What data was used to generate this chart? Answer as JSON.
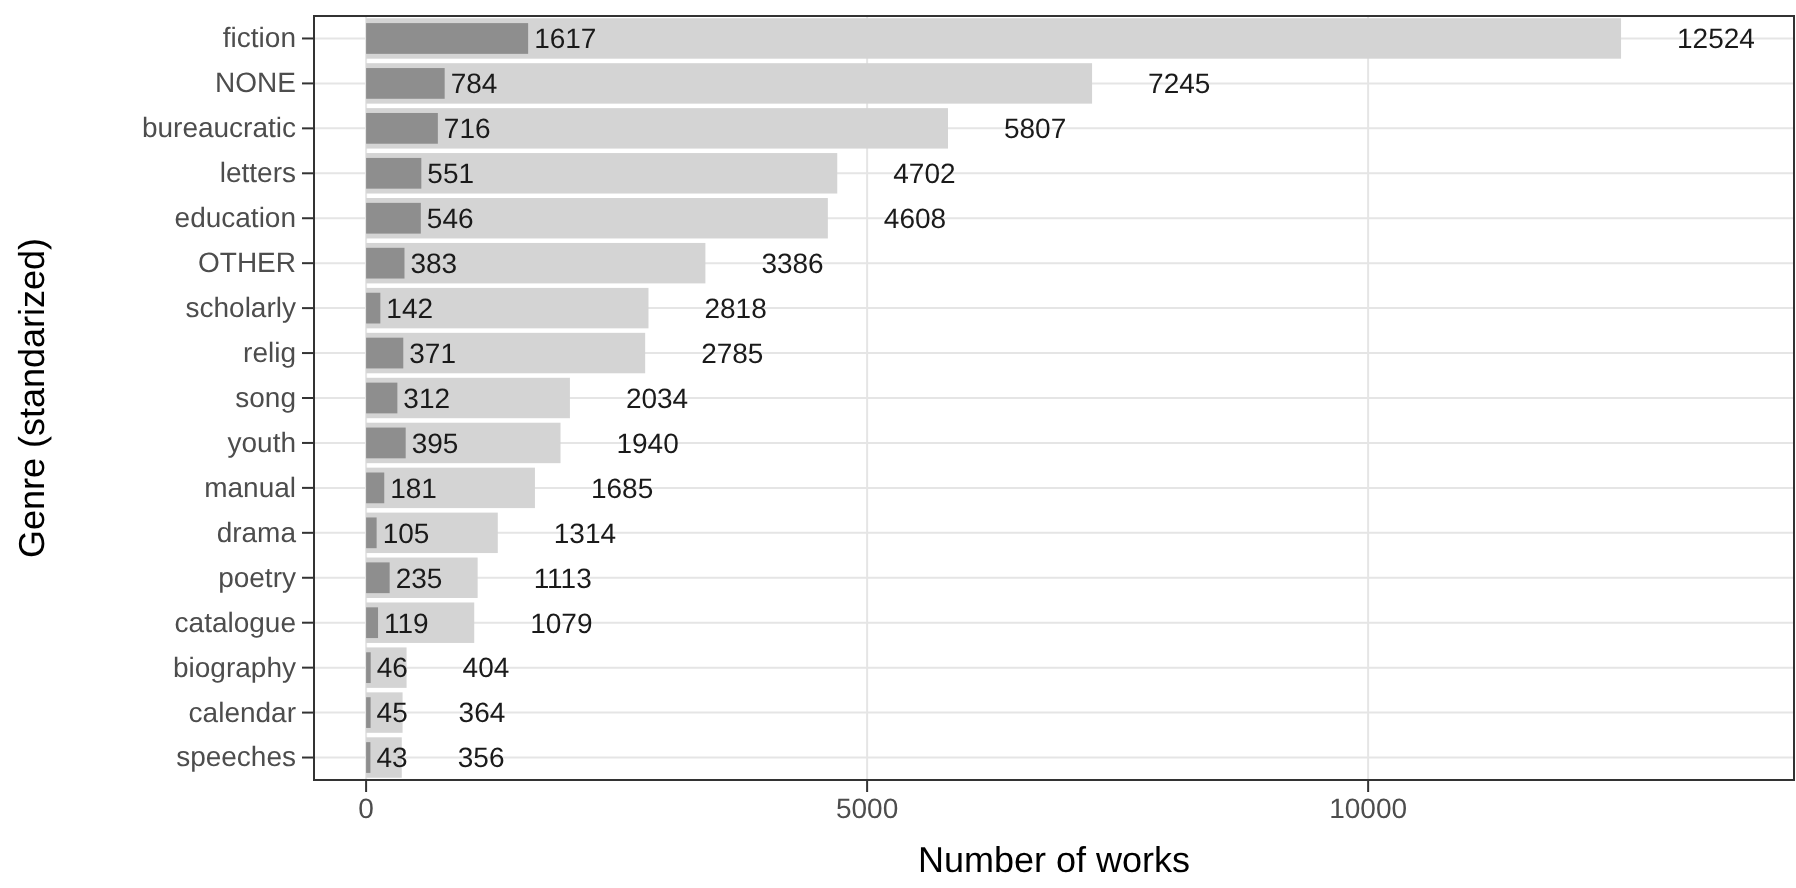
{
  "chart_data": {
    "type": "bar",
    "orientation": "horizontal",
    "xlabel": "Number of works",
    "ylabel": "Genre (standarized)",
    "categories": [
      "fiction",
      "NONE",
      "bureaucratic",
      "letters",
      "education",
      "OTHER",
      "scholarly",
      "relig",
      "song",
      "youth",
      "manual",
      "drama",
      "poetry",
      "catalogue",
      "biography",
      "calendar",
      "speeches"
    ],
    "series": [
      {
        "color": "#d4d4d4",
        "values": [
          12524,
          7245,
          5807,
          4702,
          4608,
          3386,
          2818,
          2785,
          2034,
          1940,
          1685,
          1314,
          1113,
          1079,
          404,
          364,
          356
        ]
      },
      {
        "color": "#8e8e8e",
        "values": [
          1617,
          784,
          716,
          551,
          546,
          383,
          142,
          371,
          312,
          395,
          181,
          105,
          235,
          119,
          46,
          45,
          43
        ]
      }
    ],
    "xlim": [
      -520,
      14250
    ],
    "xticks": [
      0,
      5000,
      10000
    ],
    "grid": true,
    "data_labels": true
  }
}
